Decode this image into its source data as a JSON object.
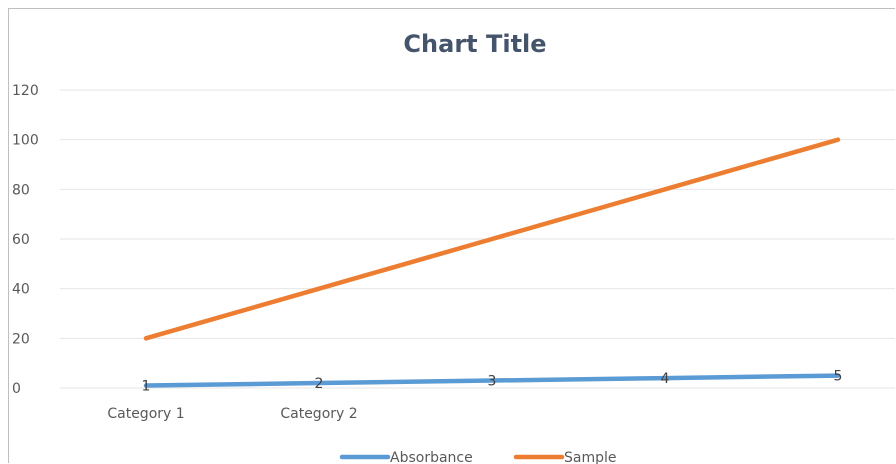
{
  "chart_data": {
    "type": "line",
    "title": "Chart Title",
    "x": [
      1,
      2,
      3,
      4,
      5
    ],
    "categories": [
      "Category 1",
      "Category 2",
      "",
      "",
      ""
    ],
    "series": [
      {
        "name": "Absorbance",
        "values": [
          1,
          2,
          3,
          4,
          5
        ],
        "color": "#5b9bd5"
      },
      {
        "name": "Sample",
        "values": [
          20,
          40,
          60,
          80,
          100
        ],
        "color": "#ed7d31"
      }
    ],
    "ylim": [
      0,
      120
    ],
    "yticks": [
      0,
      20,
      40,
      60,
      80,
      100,
      120
    ],
    "grid": true,
    "legend": "bottom"
  }
}
